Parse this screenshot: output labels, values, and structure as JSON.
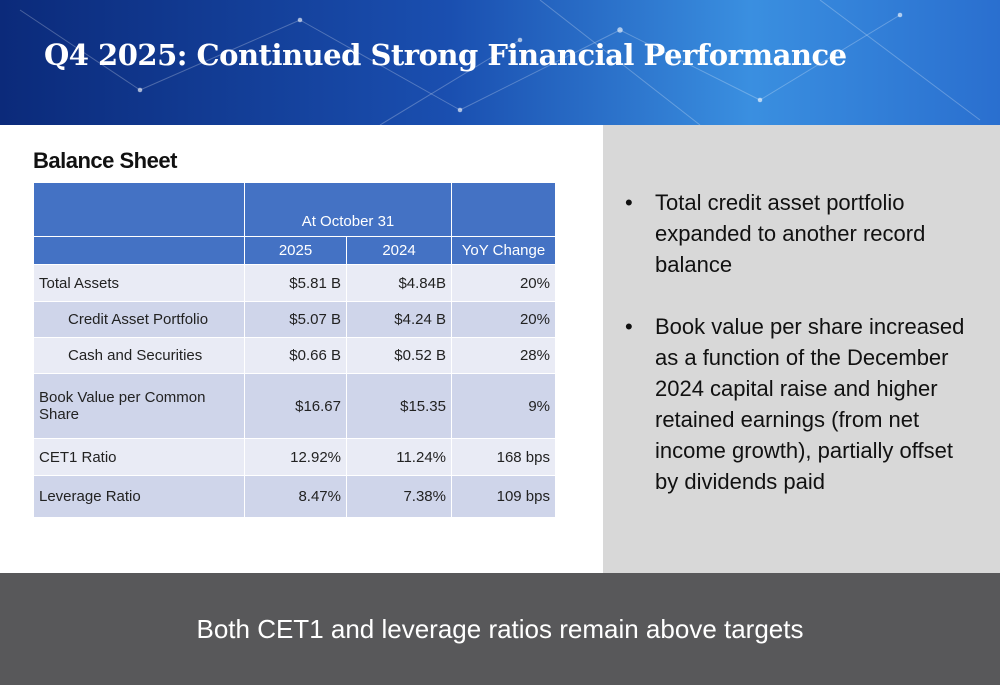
{
  "header": {
    "title": "Q4 2025: Continued Strong Financial Performance"
  },
  "table": {
    "title": "Balance Sheet",
    "group_header": "At October 31",
    "columns": [
      "2025",
      "2024",
      "YoY Change"
    ],
    "rows": [
      [
        "Total Assets",
        "$5.81 B",
        "$4.84B",
        "20%"
      ],
      [
        "Credit Asset Portfolio",
        "$5.07 B",
        "$4.24 B",
        "20%"
      ],
      [
        "Cash and Securities",
        "$0.66 B",
        "$0.52 B",
        "28%"
      ],
      [
        "Book Value per Common Share",
        "$16.67",
        "$15.35",
        "9%"
      ],
      [
        "CET1 Ratio",
        "12.92%",
        "11.24%",
        "168 bps"
      ],
      [
        "Leverage Ratio",
        "8.47%",
        "7.38%",
        "109 bps"
      ]
    ]
  },
  "bullets": [
    "Total credit asset portfolio expanded to another record balance",
    "Book value per share increased as a function of the December 2024 capital raise and higher retained earnings (from net income growth), partially offset by dividends paid"
  ],
  "footer": "Both CET1 and leverage ratios remain above targets"
}
